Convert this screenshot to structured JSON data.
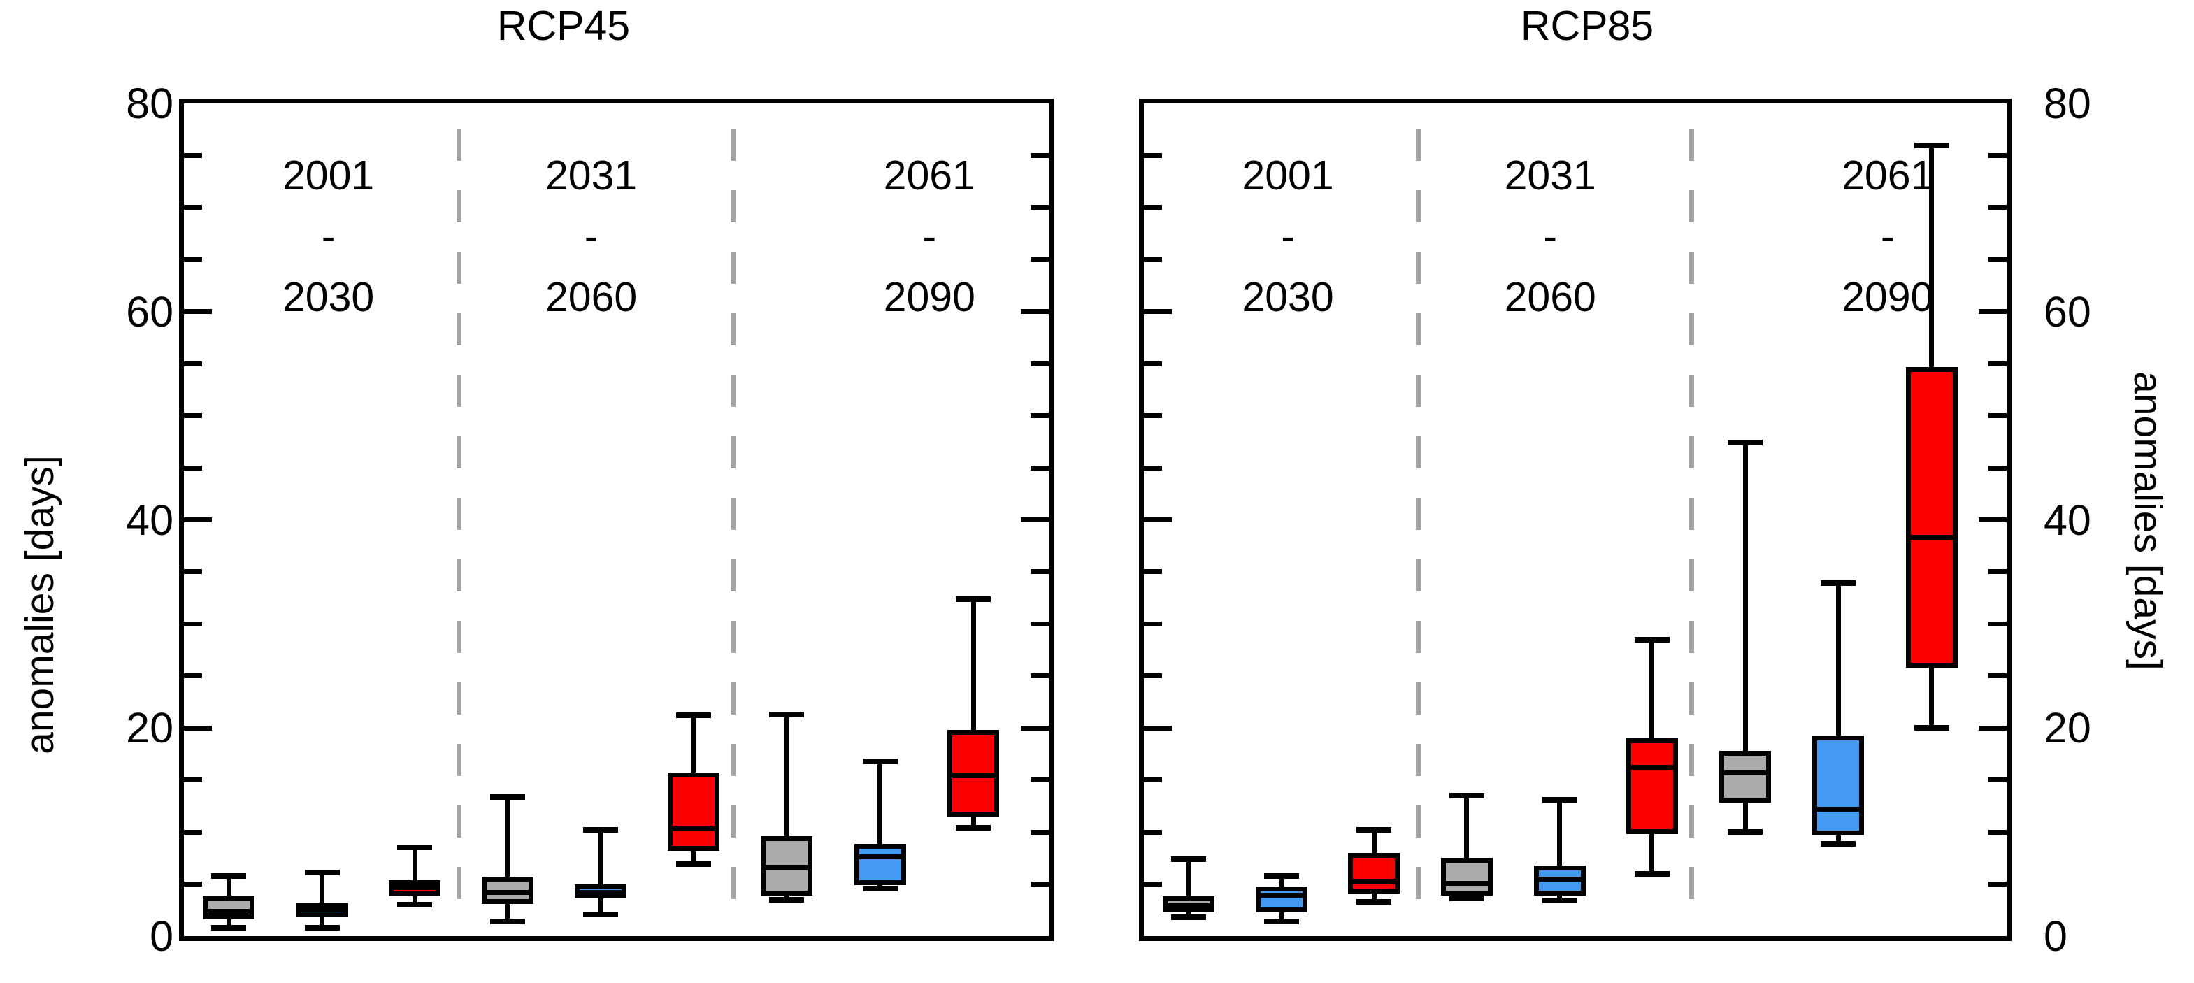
{
  "chart_data": {
    "type": "boxplot",
    "title": "",
    "ylabel_left": "anomalies [days]",
    "ylabel_right": "anomalies [days]",
    "ylim": [
      0,
      80
    ],
    "ytick_major": [
      0,
      20,
      40,
      60,
      80
    ],
    "ytick_minor_step": 5,
    "grid": "off",
    "divider_style": "dashed-gray",
    "colors": {
      "gray": "#ABABAB",
      "blue": "#4499F0",
      "red": "#FA0000",
      "box_border": "#000000",
      "divider": "#A4A4A4"
    },
    "series_names": [
      "gray",
      "blue",
      "red"
    ],
    "panels": [
      {
        "title": "RCP45",
        "periods": [
          {
            "label_start": "2001",
            "label_sep": "-",
            "label_end": "2030",
            "boxes": [
              {
                "series": "gray",
                "whisker_low": 0.8,
                "q1": 1.6,
                "median": 2.4,
                "q3": 3.9,
                "whisker_high": 5.8
              },
              {
                "series": "blue",
                "whisker_low": 0.8,
                "q1": 1.8,
                "median": 2.6,
                "q3": 3.2,
                "whisker_high": 6.1
              },
              {
                "series": "red",
                "whisker_low": 3.0,
                "q1": 3.8,
                "median": 4.7,
                "q3": 5.4,
                "whisker_high": 8.5
              }
            ]
          },
          {
            "label_start": "2031",
            "label_sep": "-",
            "label_end": "2060",
            "boxes": [
              {
                "series": "gray",
                "whisker_low": 1.4,
                "q1": 3.1,
                "median": 4.2,
                "q3": 5.7,
                "whisker_high": 13.4
              },
              {
                "series": "blue",
                "whisker_low": 2.1,
                "q1": 3.6,
                "median": 4.2,
                "q3": 5.0,
                "whisker_high": 10.2
              },
              {
                "series": "red",
                "whisker_low": 6.9,
                "q1": 8.2,
                "median": 10.4,
                "q3": 15.7,
                "whisker_high": 21.2
              }
            ]
          },
          {
            "label_start": "2061",
            "label_sep": "-",
            "label_end": "2090",
            "boxes": [
              {
                "series": "gray",
                "whisker_low": 3.5,
                "q1": 3.9,
                "median": 6.6,
                "q3": 9.6,
                "whisker_high": 21.3
              },
              {
                "series": "blue",
                "whisker_low": 4.6,
                "q1": 4.9,
                "median": 7.6,
                "q3": 8.9,
                "whisker_high": 16.8
              },
              {
                "series": "red",
                "whisker_low": 10.4,
                "q1": 11.5,
                "median": 15.4,
                "q3": 19.8,
                "whisker_high": 32.4
              }
            ]
          }
        ]
      },
      {
        "title": "RCP85",
        "periods": [
          {
            "label_start": "2001",
            "label_sep": "-",
            "label_end": "2030",
            "boxes": [
              {
                "series": "gray",
                "whisker_low": 1.8,
                "q1": 2.3,
                "median": 2.9,
                "q3": 3.9,
                "whisker_high": 7.4
              },
              {
                "series": "blue",
                "whisker_low": 1.4,
                "q1": 2.3,
                "median": 3.9,
                "q3": 4.8,
                "whisker_high": 5.8
              },
              {
                "series": "red",
                "whisker_low": 3.3,
                "q1": 4.1,
                "median": 5.3,
                "q3": 8.0,
                "whisker_high": 10.2
              }
            ]
          },
          {
            "label_start": "2031",
            "label_sep": "-",
            "label_end": "2060",
            "boxes": [
              {
                "series": "gray",
                "whisker_low": 3.6,
                "q1": 3.9,
                "median": 5.1,
                "q3": 7.5,
                "whisker_high": 13.5
              },
              {
                "series": "blue",
                "whisker_low": 3.4,
                "q1": 3.9,
                "median": 5.5,
                "q3": 6.8,
                "whisker_high": 13.1
              },
              {
                "series": "red",
                "whisker_low": 6.0,
                "q1": 9.8,
                "median": 16.2,
                "q3": 19.0,
                "whisker_high": 28.5
              }
            ]
          },
          {
            "label_start": "2061",
            "label_sep": "-",
            "label_end": "2090",
            "boxes": [
              {
                "series": "gray",
                "whisker_low": 10.0,
                "q1": 12.8,
                "median": 15.7,
                "q3": 17.8,
                "whisker_high": 47.4
              },
              {
                "series": "blue",
                "whisker_low": 8.9,
                "q1": 9.7,
                "median": 12.2,
                "q3": 19.3,
                "whisker_high": 33.9
              },
              {
                "series": "red",
                "whisker_low": 20.0,
                "q1": 25.8,
                "median": 38.3,
                "q3": 54.7,
                "whisker_high": 76.0
              }
            ]
          }
        ]
      }
    ]
  }
}
